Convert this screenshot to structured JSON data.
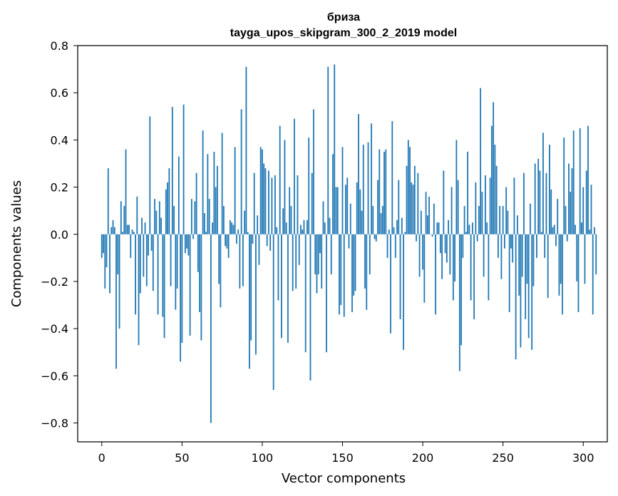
{
  "chart_data": {
    "type": "bar",
    "title": "бриза",
    "subtitle": "tayga_upos_skipgram_300_2_2019 model",
    "xlabel": "Vector components",
    "ylabel": "Components values",
    "xlim": [
      -15,
      315
    ],
    "ylim": [
      -0.88,
      0.8
    ],
    "x_ticks": [
      0,
      50,
      100,
      150,
      200,
      250,
      300
    ],
    "x_tick_labels": [
      "0",
      "50",
      "100",
      "150",
      "200",
      "250",
      "300"
    ],
    "y_ticks": [
      -0.8,
      -0.6,
      -0.4,
      -0.2,
      0.0,
      0.2,
      0.4,
      0.6,
      0.8
    ],
    "y_tick_labels": [
      "−0.8",
      "−0.6",
      "−0.4",
      "−0.2",
      "0.0",
      "0.2",
      "0.4",
      "0.6",
      "0.8"
    ],
    "bar_color": "#1f77b4",
    "series": [
      {
        "name": "бриза",
        "values": [
          -0.1,
          -0.08,
          -0.23,
          -0.14,
          0.28,
          -0.25,
          0.03,
          0.06,
          0.03,
          -0.57,
          -0.17,
          -0.4,
          0.14,
          0.01,
          0.12,
          0.36,
          0.04,
          0.04,
          -0.1,
          0.02,
          0.01,
          -0.34,
          0.16,
          -0.47,
          -0.25,
          0.07,
          -0.18,
          0.05,
          -0.22,
          -0.09,
          0.5,
          -0.07,
          -0.24,
          0.15,
          0.1,
          -0.34,
          0.14,
          0.07,
          -0.35,
          -0.44,
          0.19,
          0.22,
          0.28,
          -0.22,
          0.54,
          0.12,
          -0.32,
          -0.23,
          0.33,
          -0.54,
          -0.46,
          0.55,
          -0.08,
          -0.06,
          -0.09,
          -0.43,
          0.15,
          -0.02,
          0.14,
          0.26,
          -0.16,
          -0.33,
          -0.45,
          0.44,
          0.09,
          0.01,
          0.34,
          0.15,
          -0.8,
          0.05,
          0.35,
          0.2,
          0.29,
          -0.21,
          -0.31,
          0.43,
          0.12,
          -0.05,
          -0.06,
          -0.1,
          0.06,
          0.05,
          0.04,
          0.37,
          -0.04,
          0.02,
          -0.23,
          0.53,
          -0.22,
          0.1,
          0.71,
          0.01,
          -0.57,
          -0.45,
          -0.04,
          0.26,
          -0.51,
          0.08,
          -0.13,
          0.37,
          0.36,
          0.3,
          0.28,
          -0.05,
          0.27,
          -0.07,
          0.24,
          -0.66,
          0.25,
          0.03,
          -0.28,
          0.46,
          -0.44,
          0.11,
          0.4,
          0.05,
          -0.46,
          0.2,
          0.12,
          -0.24,
          0.49,
          -0.23,
          0.25,
          -0.13,
          0.04,
          0.02,
          0.06,
          -0.5,
          0.06,
          0.41,
          -0.62,
          0.26,
          0.53,
          -0.17,
          -0.25,
          -0.17,
          -0.08,
          -0.23,
          0.14,
          0.05,
          -0.5,
          0.71,
          0.07,
          -0.17,
          0.34,
          0.72,
          0.2,
          0.2,
          -0.34,
          -0.3,
          0.37,
          -0.35,
          0.21,
          0.24,
          -0.06,
          0.13,
          -0.33,
          -0.26,
          -0.24,
          0.22,
          0.51,
          0.19,
          0.1,
          0.38,
          -0.23,
          -0.32,
          0.39,
          -0.17,
          0.47,
          0.12,
          -0.02,
          -0.03,
          0.23,
          0.36,
          0.09,
          0.12,
          0.35,
          0.36,
          -0.1,
          0.02,
          -0.42,
          0.48,
          0.03,
          -0.1,
          0.06,
          0.23,
          -0.36,
          0.07,
          -0.49,
          0.01,
          0.29,
          0.4,
          0.37,
          0.22,
          0.21,
          0.29,
          -0.03,
          0.26,
          -0.18,
          0.1,
          -0.15,
          -0.29,
          0.18,
          0.08,
          0.16,
          0.0,
          -0.01,
          0.13,
          -0.34,
          0.05,
          0.05,
          -0.08,
          -0.19,
          0.27,
          -0.08,
          -0.12,
          0.06,
          -0.17,
          0.2,
          -0.28,
          -0.2,
          0.4,
          0.23,
          -0.58,
          -0.47,
          -0.1,
          0.12,
          0.01,
          0.35,
          0.04,
          -0.28,
          0.05,
          -0.36,
          0.22,
          -0.03,
          0.12,
          0.62,
          0.18,
          -0.18,
          0.25,
          0.05,
          -0.28,
          0.24,
          0.46,
          0.56,
          0.38,
          0.29,
          -0.1,
          0.12,
          -0.19,
          0.12,
          -0.06,
          0.2,
          0.1,
          -0.33,
          -0.06,
          -0.12,
          0.24,
          -0.53,
          0.08,
          -0.26,
          -0.48,
          -0.18,
          0.26,
          -0.36,
          -0.21,
          -0.44,
          0.13,
          -0.49,
          -0.22,
          0.3,
          -0.1,
          0.32,
          0.27,
          0.01,
          0.43,
          -0.1,
          0.26,
          -0.27,
          0.38,
          0.19,
          0.03,
          0.04,
          -0.05,
          0.15,
          -0.26,
          -0.21,
          -0.34,
          0.41,
          0.12,
          -0.03,
          0.3,
          0.18,
          0.28,
          0.44,
          0.04,
          -0.2,
          -0.33,
          0.45,
          0.05,
          0.2,
          -0.21,
          0.27,
          0.46,
          0.02,
          0.21,
          -0.34,
          0.03,
          -0.17
        ]
      }
    ]
  }
}
